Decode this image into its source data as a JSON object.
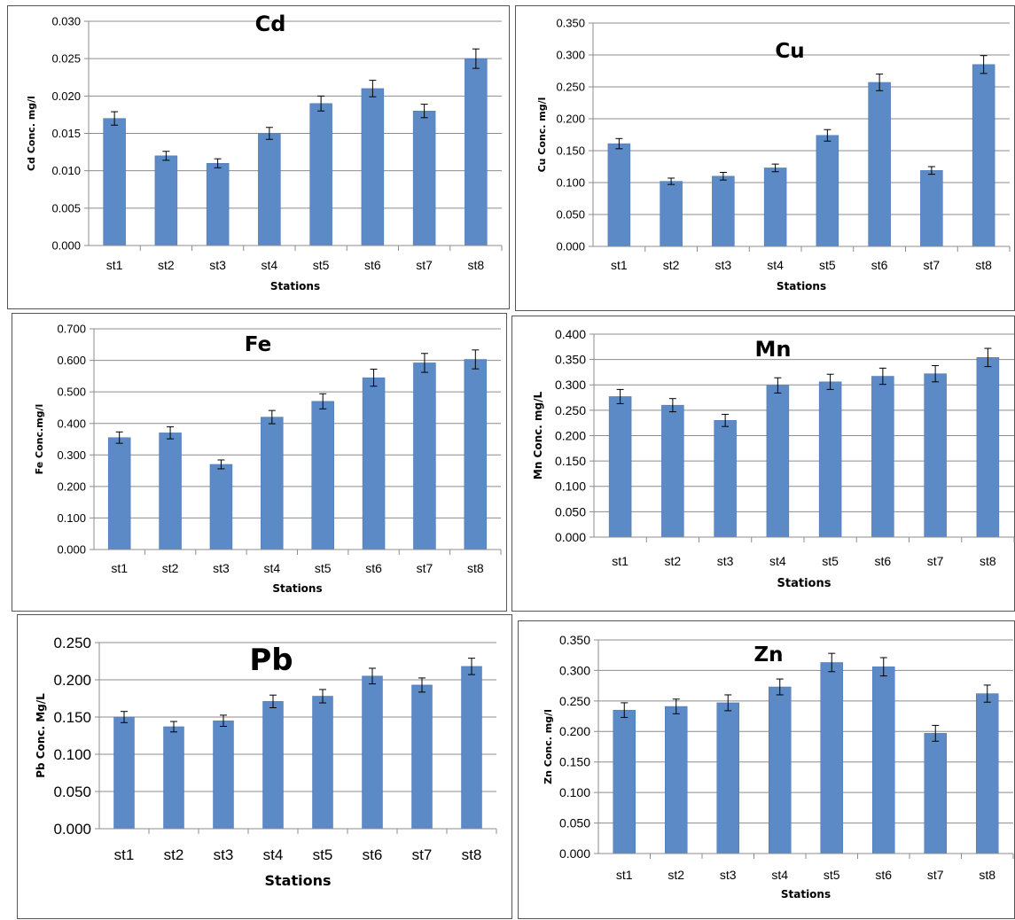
{
  "colors": {
    "bar": "#5b8ac6",
    "bar_edge": "#4a76b0",
    "grid": "#8c8c8c",
    "axis": "#8c8c8c",
    "error_bar": "#000000"
  },
  "chart_data": [
    {
      "type": "bar",
      "title": "Cd",
      "xlabel": "Stations",
      "ylabel": "Cd Conc. mg/l",
      "categories": [
        "st1",
        "st2",
        "st3",
        "st4",
        "st5",
        "st6",
        "st7",
        "st8"
      ],
      "values": [
        0.017,
        0.012,
        0.011,
        0.015,
        0.019,
        0.021,
        0.018,
        0.025
      ],
      "errors": [
        0.0009,
        0.0006,
        0.0006,
        0.0008,
        0.001,
        0.0011,
        0.0009,
        0.0013
      ],
      "ylim": [
        0,
        0.03
      ],
      "yticks": [
        "0.000",
        "0.005",
        "0.010",
        "0.015",
        "0.020",
        "0.025",
        "0.030"
      ],
      "grid": true
    },
    {
      "type": "bar",
      "title": "Cu",
      "xlabel": "Stations",
      "ylabel": "Cu Conc. mg/l",
      "categories": [
        "st1",
        "st2",
        "st3",
        "st4",
        "st5",
        "st6",
        "st7",
        "st8"
      ],
      "values": [
        0.161,
        0.102,
        0.11,
        0.123,
        0.174,
        0.257,
        0.119,
        0.285
      ],
      "errors": [
        0.008,
        0.005,
        0.006,
        0.006,
        0.009,
        0.013,
        0.006,
        0.014
      ],
      "ylim": [
        0,
        0.35
      ],
      "yticks": [
        "0.000",
        "0.050",
        "0.100",
        "0.150",
        "0.200",
        "0.250",
        "0.300",
        "0.350"
      ],
      "grid": true
    },
    {
      "type": "bar",
      "title": "Fe",
      "xlabel": "Stations",
      "ylabel": "Fe Conc.mg/l",
      "categories": [
        "st1",
        "st2",
        "st3",
        "st4",
        "st5",
        "st6",
        "st7",
        "st8"
      ],
      "values": [
        0.355,
        0.37,
        0.27,
        0.42,
        0.47,
        0.545,
        0.592,
        0.603
      ],
      "errors": [
        0.018,
        0.019,
        0.014,
        0.021,
        0.024,
        0.027,
        0.03,
        0.03
      ],
      "ylim": [
        0,
        0.7
      ],
      "yticks": [
        "0.000",
        "0.100",
        "0.200",
        "0.300",
        "0.400",
        "0.500",
        "0.600",
        "0.700"
      ],
      "grid": true
    },
    {
      "type": "bar",
      "title": "Mn",
      "xlabel": "Stations",
      "ylabel": "Mn Conc. mg/L",
      "categories": [
        "st1",
        "st2",
        "st3",
        "st4",
        "st5",
        "st6",
        "st7",
        "st8"
      ],
      "values": [
        0.277,
        0.26,
        0.23,
        0.299,
        0.306,
        0.317,
        0.322,
        0.354
      ],
      "errors": [
        0.014,
        0.013,
        0.012,
        0.015,
        0.015,
        0.016,
        0.016,
        0.018
      ],
      "ylim": [
        0,
        0.4
      ],
      "yticks": [
        "0.000",
        "0.050",
        "0.100",
        "0.150",
        "0.200",
        "0.250",
        "0.300",
        "0.350",
        "0.400"
      ],
      "grid": true
    },
    {
      "type": "bar",
      "title": "Pb",
      "xlabel": "Stations",
      "ylabel": "Pb Conc. Mg/L",
      "categories": [
        "st1",
        "st2",
        "st3",
        "st4",
        "st5",
        "st6",
        "st7",
        "st8"
      ],
      "values": [
        0.15,
        0.137,
        0.145,
        0.171,
        0.178,
        0.205,
        0.193,
        0.218
      ],
      "errors": [
        0.0075,
        0.007,
        0.0075,
        0.0085,
        0.009,
        0.0105,
        0.0095,
        0.011
      ],
      "ylim": [
        0,
        0.25
      ],
      "yticks": [
        "0.000",
        "0.050",
        "0.100",
        "0.150",
        "0.200",
        "0.250"
      ],
      "grid": true
    },
    {
      "type": "bar",
      "title": "Zn",
      "xlabel": "Stations",
      "ylabel": "Zn Conc. mg/l",
      "categories": [
        "st1",
        "st2",
        "st3",
        "st4",
        "st5",
        "st6",
        "st7",
        "st8"
      ],
      "values": [
        0.235,
        0.241,
        0.247,
        0.273,
        0.313,
        0.306,
        0.197,
        0.262
      ],
      "errors": [
        0.012,
        0.012,
        0.013,
        0.013,
        0.015,
        0.015,
        0.013,
        0.014
      ],
      "ylim": [
        0,
        0.35
      ],
      "yticks": [
        "0.000",
        "0.050",
        "0.100",
        "0.150",
        "0.200",
        "0.250",
        "0.300",
        "0.350"
      ],
      "grid": true
    }
  ]
}
